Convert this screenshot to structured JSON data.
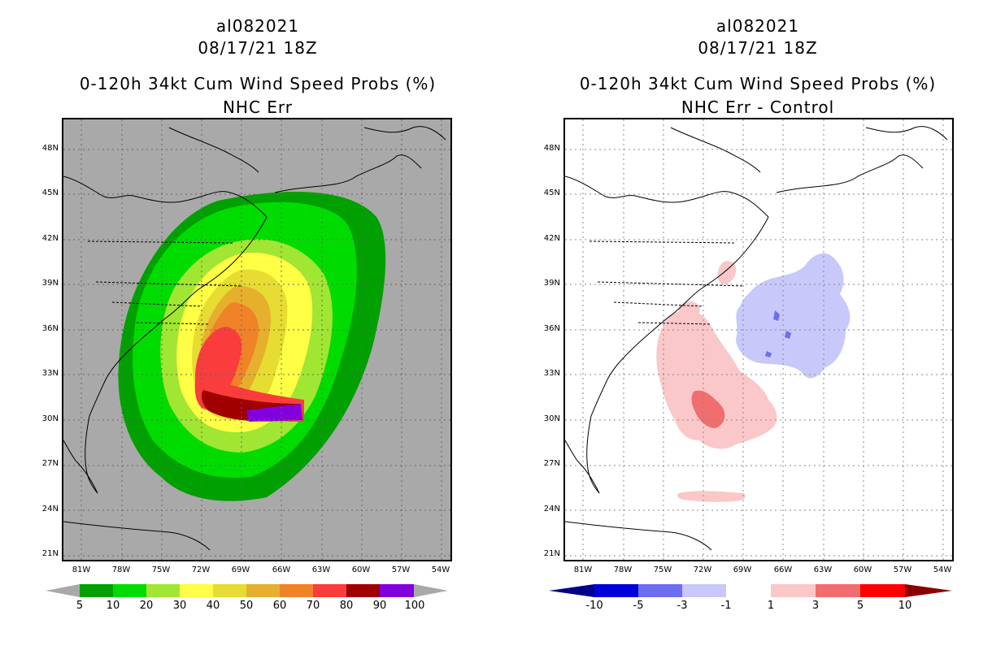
{
  "left": {
    "storm": "al082021",
    "datetime": "08/17/21 18Z",
    "product": "0-120h 34kt Cum Wind Speed Probs (%)",
    "subtitle": "NHC Err",
    "colorbar": {
      "labels": [
        "5",
        "10",
        "20",
        "30",
        "40",
        "50",
        "60",
        "70",
        "80",
        "90",
        "100"
      ],
      "colors": [
        "#00a000",
        "#00dc00",
        "#a0e632",
        "#ffff46",
        "#e6dc32",
        "#e6af2d",
        "#f08228",
        "#fa3c3c",
        "#a00000",
        "#8200dc"
      ]
    }
  },
  "right": {
    "storm": "al082021",
    "datetime": "08/17/21 18Z",
    "product": "0-120h 34kt Cum Wind Speed Probs (%)",
    "subtitle": "NHC Err - Control",
    "colorbar": {
      "labels": [
        "-10",
        "-5",
        "-3",
        "-1",
        "1",
        "3",
        "5",
        "10"
      ],
      "colors": [
        "#0000dc",
        "#6e6ef0",
        "#c8c8fa",
        "#ffffff",
        "#fac8c8",
        "#f06e6e",
        "#ff0000"
      ]
    }
  },
  "axes": {
    "lat_labels": [
      "48N",
      "45N",
      "42N",
      "39N",
      "36N",
      "33N",
      "30N",
      "27N",
      "24N",
      "21N"
    ],
    "lon_labels": [
      "81W",
      "78W",
      "75W",
      "72W",
      "69W",
      "66W",
      "63W",
      "60W",
      "57W",
      "54W"
    ]
  },
  "colors": {
    "land_bg": "#a9a9a9",
    "outline": "#000000",
    "grid": "#888888"
  }
}
